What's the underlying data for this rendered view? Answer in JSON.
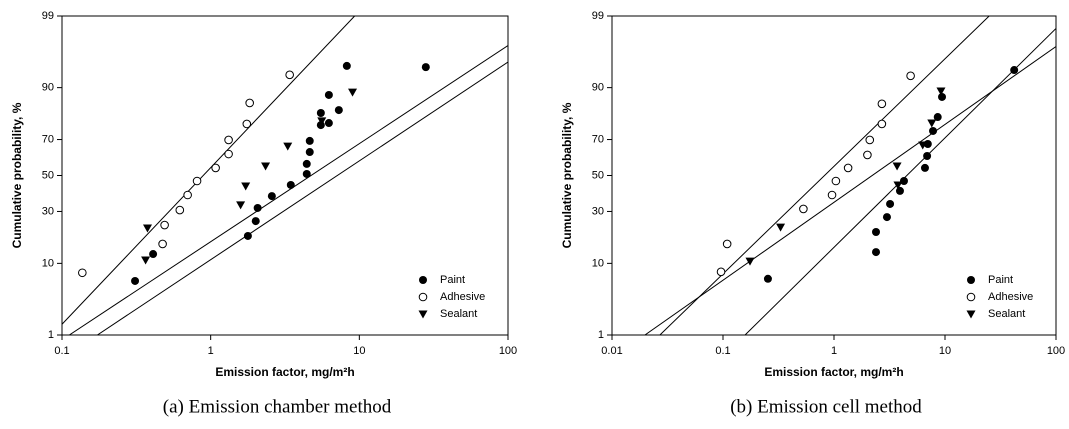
{
  "chart_data": [
    {
      "type": "scatter",
      "caption": "(a) Emission chamber method",
      "xlabel": "Emission factor, mg/m²h",
      "ylabel": "Cumulative probability, %",
      "xscale": "log",
      "yscale": "probability",
      "xlim": [
        0.1,
        100
      ],
      "ylim": [
        1,
        99
      ],
      "xticks": [
        0.1,
        1,
        10,
        100
      ],
      "yticks": [
        1,
        10,
        30,
        50,
        70,
        90,
        99
      ],
      "legend": "lower right",
      "series": [
        {
          "name": "Paint",
          "color": "#000000",
          "marker": "filled-circle",
          "x": [
            0.31,
            0.41,
            1.78,
            2.01,
            2.07,
            2.58,
            3.46,
            4.43,
            4.43,
            4.64,
            4.64,
            5.51,
            5.51,
            6.24,
            7.28,
            6.24,
            8.24,
            28
          ],
          "values": [
            6.2,
            12.6,
            18.9,
            25.3,
            31.8,
            38.2,
            44.5,
            50.9,
            56.7,
            63.4,
            69.3,
            76.9,
            81.9,
            77.8,
            83,
            88,
            94.5,
            94.3
          ]
        },
        {
          "name": "Adhesive",
          "color": "#000000",
          "marker": "open-circle",
          "x": [
            0.137,
            0.475,
            0.49,
            0.62,
            0.7,
            0.81,
            1.08,
            1.32,
            1.32,
            1.75,
            1.83,
            3.4
          ],
          "values": [
            7.8,
            15.9,
            23.5,
            30.7,
            38.8,
            46.8,
            54.4,
            62.3,
            69.8,
            77.4,
            85.5,
            92.9
          ]
        },
        {
          "name": "Sealant",
          "color": "#000000",
          "marker": "filled-triangle-down",
          "x": [
            0.376,
            0.365,
            1.59,
            1.72,
            2.34,
            3.3,
            5.59,
            9
          ],
          "values": [
            22.2,
            10.9,
            33.4,
            43.9,
            55.5,
            66.6,
            78.7,
            88.8
          ]
        }
      ],
      "fit_lines": [
        {
          "x": [
            0.1,
            9.3
          ],
          "values": [
            1.5,
            99
          ]
        },
        {
          "x": [
            0.112,
            100
          ],
          "values": [
            1,
            97.1
          ]
        },
        {
          "x": [
            0.173,
            100
          ],
          "values": [
            1,
            95.1
          ]
        }
      ]
    },
    {
      "type": "scatter",
      "caption": "(b) Emission cell method",
      "xlabel": "Emission factor, mg/m²h",
      "ylabel": "Cumulative probability, %",
      "xscale": "log",
      "yscale": "probability",
      "xlim": [
        0.01,
        100
      ],
      "ylim": [
        1,
        99
      ],
      "xticks": [
        0.01,
        0.1,
        1,
        10,
        100
      ],
      "yticks": [
        1,
        10,
        30,
        50,
        70,
        90,
        99
      ],
      "legend": "lower right",
      "series": [
        {
          "name": "Paint",
          "color": "#000000",
          "marker": "filled-circle",
          "x": [
            0.254,
            2.39,
            2.39,
            3,
            3.2,
            3.93,
            4.27,
            6.6,
            6.9,
            7,
            7.8,
            8.6,
            9.4,
            42
          ],
          "values": [
            6.6,
            13.2,
            20.5,
            27.2,
            33.9,
            41.1,
            46.8,
            54.4,
            61.2,
            67.7,
            74.2,
            80.3,
            87.4,
            93.8
          ]
        },
        {
          "name": "Adhesive",
          "color": "#000000",
          "marker": "open-circle",
          "x": [
            0.096,
            0.109,
            0.53,
            0.96,
            1.04,
            1.34,
            2,
            2.1,
            2.7,
            2.7,
            4.9
          ],
          "values": [
            8,
            15.9,
            31.3,
            38.8,
            46.8,
            54.4,
            61.8,
            69.8,
            77.4,
            85.2,
            92.7
          ]
        },
        {
          "name": "Sealant",
          "color": "#000000",
          "marker": "filled-triangle-down",
          "x": [
            0.175,
            0.33,
            3.77,
            3.7,
            6.3,
            7.6,
            9.2
          ],
          "values": [
            10.6,
            22.6,
            44.5,
            55.5,
            67.2,
            77.8,
            89.1
          ]
        }
      ],
      "fit_lines": [
        {
          "x": [
            0.027,
            25
          ],
          "values": [
            1,
            99
          ]
        },
        {
          "x": [
            0.0198,
            100
          ],
          "values": [
            1,
            97
          ]
        },
        {
          "x": [
            0.158,
            100
          ],
          "values": [
            1,
            98.4
          ]
        }
      ]
    }
  ]
}
